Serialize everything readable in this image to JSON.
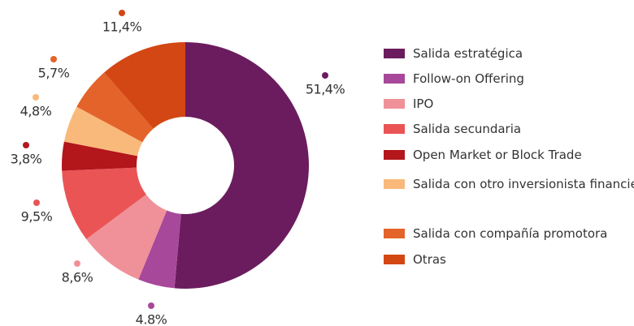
{
  "chart_data": {
    "type": "donut",
    "categories": [
      "Salida estratégica",
      "Follow-on Offering",
      "IPO",
      "Salida secundaria",
      "Open Market or Block Trade",
      "Salida con otro inversionista financiero",
      "Salida con compañía promotora",
      "Otras"
    ],
    "values": [
      51.4,
      4.8,
      8.6,
      9.5,
      3.8,
      4.8,
      5.7,
      11.4
    ],
    "value_labels": [
      "51,4%",
      "4.8%",
      "8,6%",
      "9,5%",
      "3,8%",
      "4,8%",
      "5,7%",
      "11,4%"
    ],
    "colors": [
      "#6b1c5e",
      "#a8489a",
      "#f09199",
      "#ea5455",
      "#b3161b",
      "#f9b97a",
      "#e4632a",
      "#d34714"
    ],
    "legend": "right"
  }
}
